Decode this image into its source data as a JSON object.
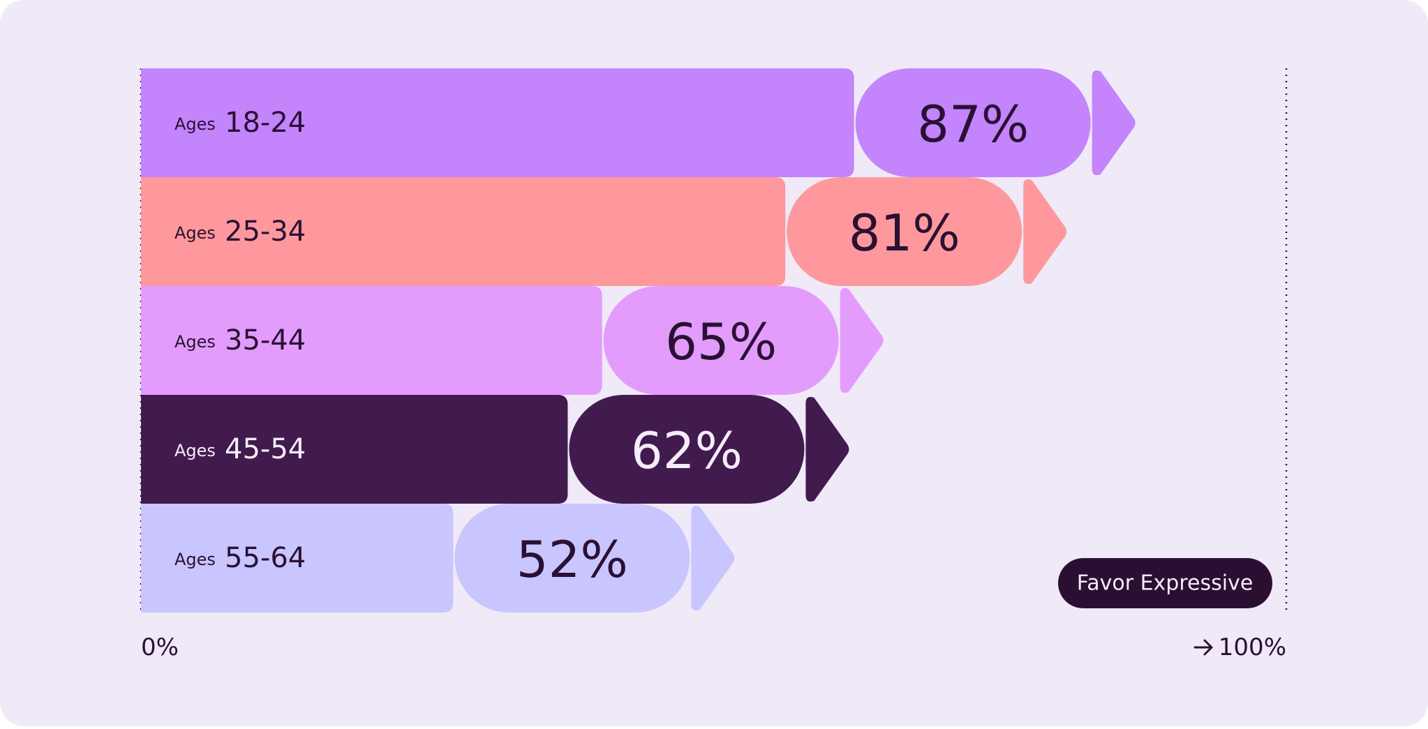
{
  "chart_data": {
    "type": "bar",
    "orientation": "horizontal",
    "category_prefix": "Ages",
    "categories": [
      "18-24",
      "25-34",
      "35-44",
      "45-54",
      "55-64"
    ],
    "values": [
      87,
      81,
      65,
      62,
      52
    ],
    "value_labels": [
      "87%",
      "81%",
      "65%",
      "62%",
      "52%"
    ],
    "colors": [
      "#c384fc",
      "#fe989c",
      "#e39cfc",
      "#421b4e",
      "#c9c5fe"
    ],
    "xlim": [
      0,
      100
    ],
    "xticks": [
      {
        "value": 0,
        "label": "0%"
      },
      {
        "value": 100,
        "label": "100%"
      }
    ],
    "legend": {
      "label": "Favor Expressive",
      "color": "#2b0f33",
      "position": "lower right"
    }
  }
}
